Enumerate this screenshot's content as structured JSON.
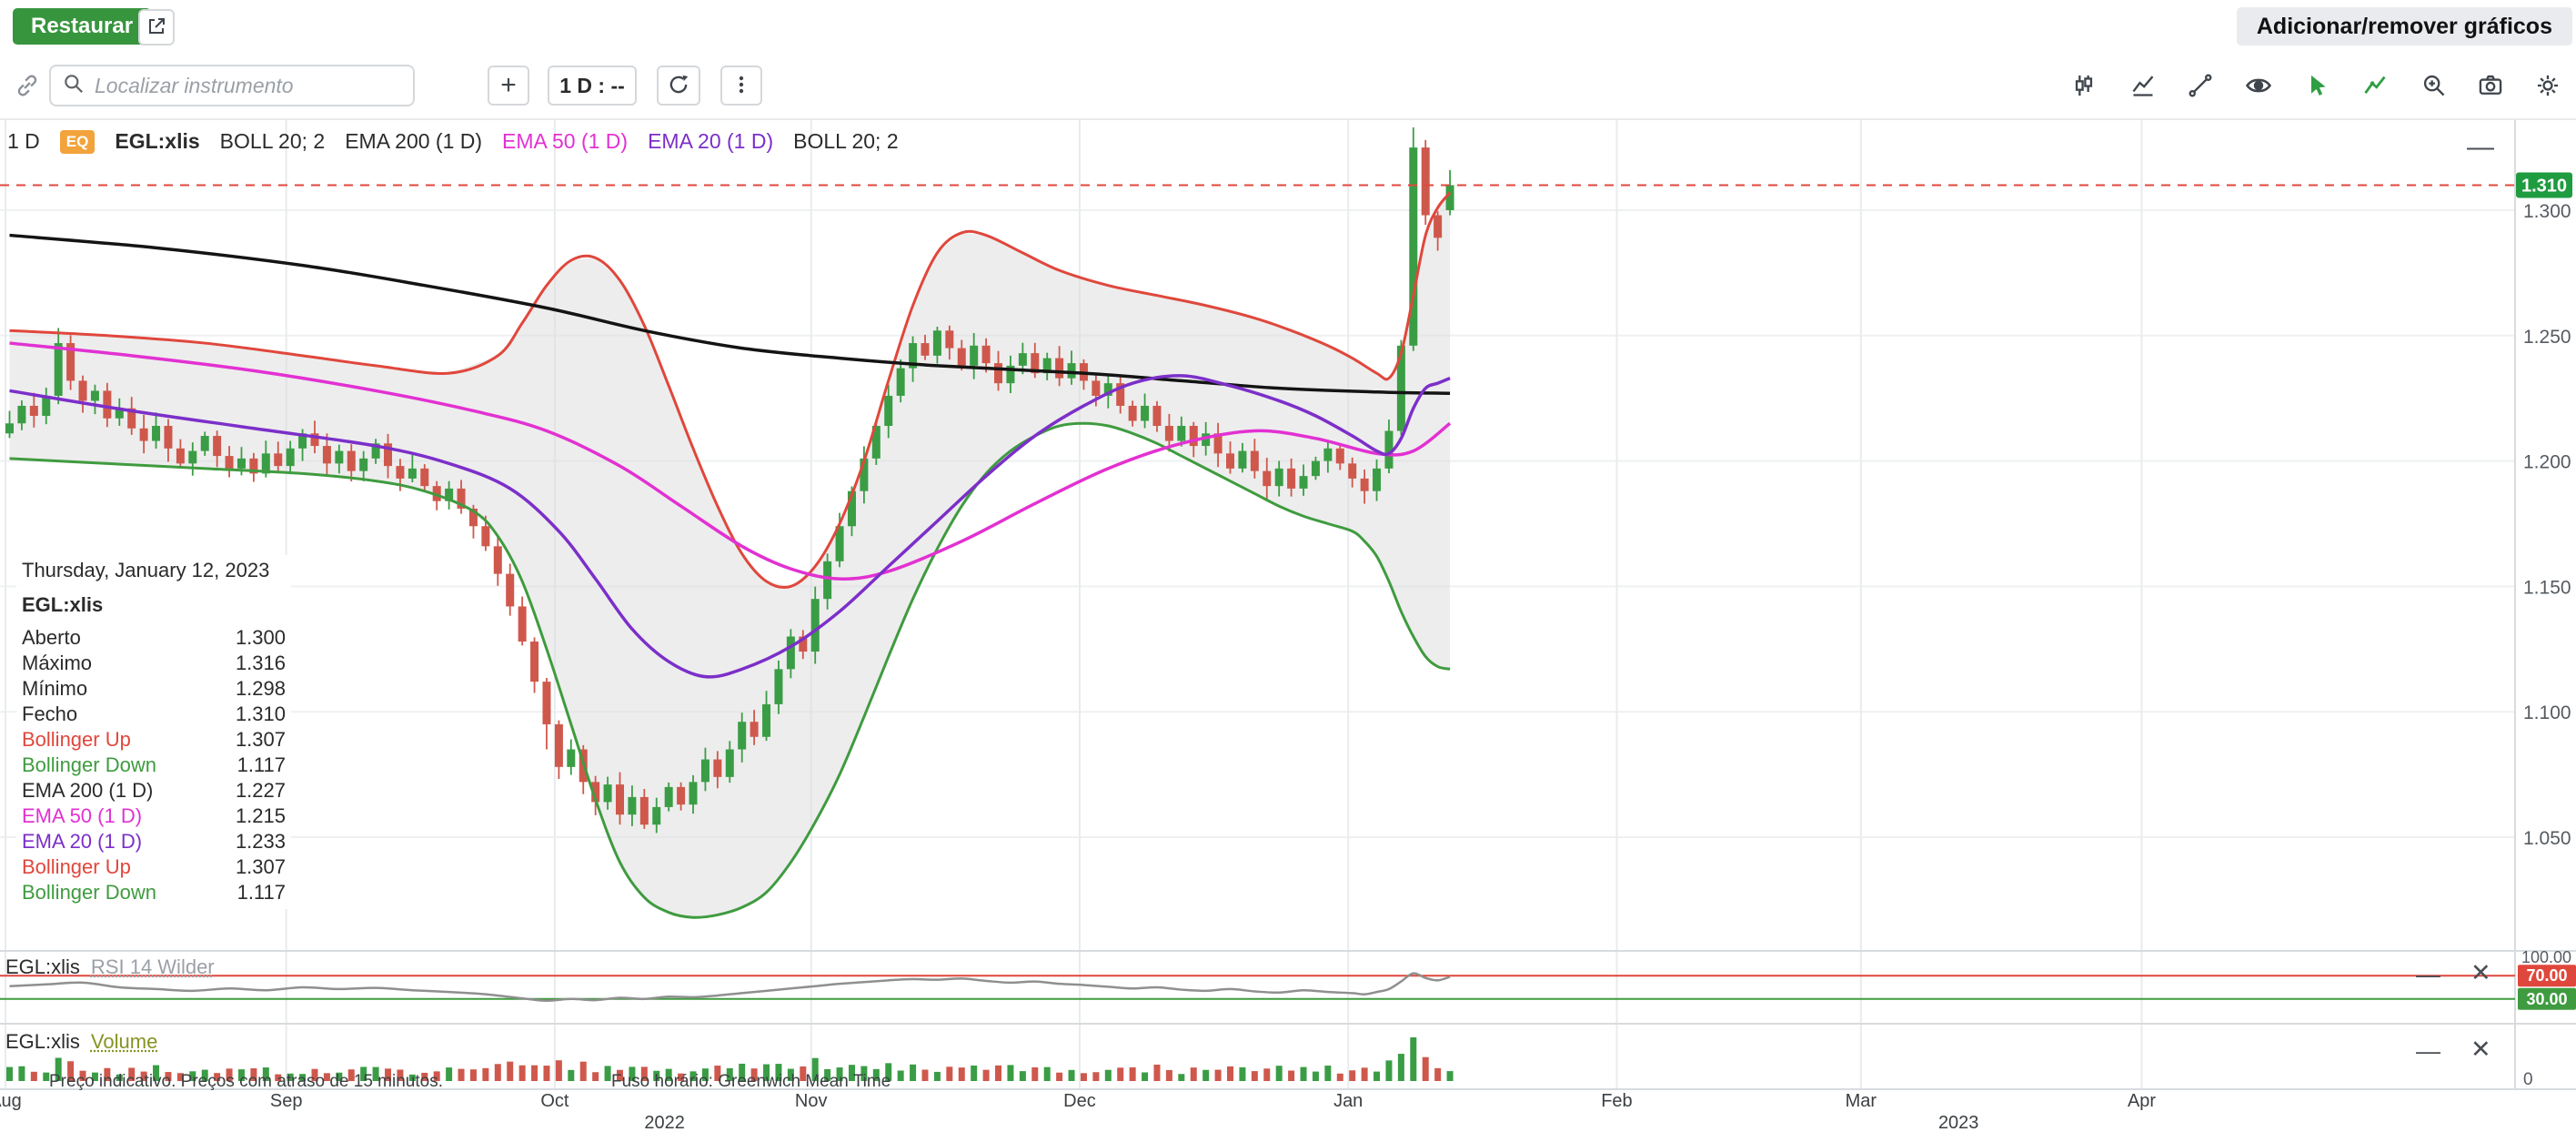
{
  "ui": {
    "plus": "+",
    "minimize": "—",
    "close": "✕"
  },
  "header": {
    "restore_button": "Restaurar",
    "add_remove_button": "Adicionar/remover gráficos"
  },
  "toolbar": {
    "search_placeholder": "Localizar instrumento",
    "interval_button": "1 D : --",
    "left_icons": [
      "link-icon",
      "search-icon",
      "plus-icon",
      "refresh-icon",
      "kebab-menu-icon"
    ],
    "right_icons": [
      "candlestick-tool-icon",
      "area-chart-tool-icon",
      "trendline-tool-icon",
      "eye-icon",
      "cursor-tool-icon",
      "draw-chart-tool-icon",
      "zoom-in-icon",
      "camera-icon",
      "settings-gear-icon"
    ]
  },
  "legend": {
    "interval": "1 D",
    "exchange_badge": "EQ",
    "symbol": "EGL:xlis",
    "studies": [
      {
        "label": "BOLL 20; 2",
        "color": "#2b2b2b"
      },
      {
        "label": "EMA 200 (1 D)",
        "color": "#2b2b2b"
      },
      {
        "label": "EMA 50 (1 D)",
        "color": "#e231d2"
      },
      {
        "label": "EMA 20 (1 D)",
        "color": "#7c2fc9"
      },
      {
        "label": "BOLL 20; 2",
        "color": "#2b2b2b"
      }
    ]
  },
  "tooltip": {
    "date": "Thursday, January 12, 2023",
    "symbol": "EGL:xlis",
    "rows": [
      {
        "label": "Aberto",
        "value": "1.300",
        "color": "#2b2b2b"
      },
      {
        "label": "Máximo",
        "value": "1.316",
        "color": "#2b2b2b"
      },
      {
        "label": "Mínimo",
        "value": "1.298",
        "color": "#2b2b2b"
      },
      {
        "label": "Fecho",
        "value": "1.310",
        "color": "#2b2b2b"
      },
      {
        "label": "Bollinger Up",
        "value": "1.307",
        "color": "#e0473c"
      },
      {
        "label": "Bollinger Down",
        "value": "1.117",
        "color": "#3f9b3f"
      },
      {
        "label": "EMA 200 (1 D)",
        "value": "1.227",
        "color": "#2b2b2b"
      },
      {
        "label": "EMA 50 (1 D)",
        "value": "1.215",
        "color": "#e231d2"
      },
      {
        "label": "EMA 20 (1 D)",
        "value": "1.233",
        "color": "#7c2fc9"
      },
      {
        "label": "Bollinger Up",
        "value": "1.307",
        "color": "#e0473c"
      },
      {
        "label": "Bollinger Down",
        "value": "1.117",
        "color": "#3f9b3f"
      }
    ]
  },
  "panels": {
    "rsi": {
      "symbol": "EGL:xlis",
      "study": "RSI 14 Wilder",
      "scale_top": "100.00",
      "upper_badge": "70.00",
      "lower_badge": "30.00"
    },
    "volume": {
      "symbol": "EGL:xlis",
      "study": "Volume",
      "scale_zero": "0"
    }
  },
  "footer": {
    "disclaimer": "Preço indicativo. Preços com atraso de 15 minutos.",
    "timezone": "Fuso horário: Greenwich Mean Time"
  },
  "chart_data": {
    "type": "candlestick",
    "title": "EGL:xlis 1 D — Bollinger 20;2, EMA 200, EMA 50, EMA 20, RSI 14 Wilder, Volume",
    "price_axis": {
      "ticks": [
        1.3,
        1.25,
        1.2,
        1.15,
        1.1,
        1.05
      ],
      "last_price": 1.31,
      "price_range_visible": [
        1.005,
        1.335
      ]
    },
    "time_axis": {
      "months": [
        {
          "label": "Aug",
          "day": 0
        },
        {
          "label": "Sep",
          "day": 23
        },
        {
          "label": "Oct",
          "day": 45
        },
        {
          "label": "Nov",
          "day": 66
        },
        {
          "label": "Dec",
          "day": 88
        },
        {
          "label": "Jan",
          "day": 110
        },
        {
          "label": "Feb",
          "day": 132
        },
        {
          "label": "Mar",
          "day": 152
        },
        {
          "label": "Apr",
          "day": 175
        }
      ],
      "years": [
        {
          "label": "2022",
          "day": 54
        },
        {
          "label": "2023",
          "day": 160
        }
      ]
    },
    "colors": {
      "up": "#3a9d45",
      "down": "#cf584c",
      "band_fill": "#dcdcdc",
      "boll_up": "#e0473c",
      "boll_down": "#3f9b3f",
      "ema200": "#141414",
      "ema50": "#e231d2",
      "ema20": "#7c2fc9",
      "last_line": "#e0473c",
      "last_chip": "#1f9b40",
      "rsi_line": "#8f8f8f",
      "rsi_upper": "#e0473c",
      "rsi_lower": "#3f9b3f",
      "grid_v": "#e9ebed",
      "grid_h": "#eef0f2",
      "separator": "#d8dbde",
      "axis_text": "#565b61"
    },
    "closes": [
      1.215,
      1.222,
      1.218,
      1.226,
      1.247,
      1.232,
      1.224,
      1.228,
      1.217,
      1.221,
      1.213,
      1.208,
      1.214,
      1.205,
      1.199,
      1.204,
      1.21,
      1.202,
      1.197,
      1.201,
      1.195,
      1.203,
      1.198,
      1.205,
      1.211,
      1.206,
      1.199,
      1.204,
      1.196,
      1.201,
      1.207,
      1.198,
      1.193,
      1.197,
      1.19,
      1.184,
      1.189,
      1.181,
      1.174,
      1.166,
      1.155,
      1.142,
      1.128,
      1.112,
      1.095,
      1.078,
      1.085,
      1.072,
      1.064,
      1.071,
      1.059,
      1.066,
      1.055,
      1.062,
      1.07,
      1.063,
      1.072,
      1.081,
      1.074,
      1.085,
      1.096,
      1.09,
      1.103,
      1.117,
      1.13,
      1.124,
      1.145,
      1.16,
      1.174,
      1.188,
      1.201,
      1.214,
      1.226,
      1.237,
      1.247,
      1.242,
      1.252,
      1.245,
      1.238,
      1.246,
      1.239,
      1.231,
      1.238,
      1.243,
      1.235,
      1.241,
      1.233,
      1.239,
      1.232,
      1.226,
      1.231,
      1.222,
      1.216,
      1.222,
      1.214,
      1.208,
      1.214,
      1.206,
      1.211,
      1.203,
      1.197,
      1.204,
      1.196,
      1.19,
      1.197,
      1.189,
      1.194,
      1.2,
      1.205,
      1.199,
      1.193,
      1.188,
      1.197,
      1.212,
      1.246,
      1.325,
      1.298,
      1.289,
      1.31
    ],
    "candle_overrides": {
      "4": {
        "h": 1.253
      },
      "44": {
        "l": 1.085
      },
      "115": {
        "h": 1.333
      },
      "116": {
        "h": 1.328
      },
      "118": {
        "o": 1.3,
        "h": 1.316,
        "l": 1.298
      }
    },
    "overlays": {
      "boll_up": {
        "color": "#e0473c",
        "points": [
          [
            0,
            1.252
          ],
          [
            8,
            1.25
          ],
          [
            16,
            1.247
          ],
          [
            24,
            1.242
          ],
          [
            30,
            1.238
          ],
          [
            36,
            1.235
          ],
          [
            40,
            1.242
          ],
          [
            42,
            1.255
          ],
          [
            44,
            1.27
          ],
          [
            46,
            1.28
          ],
          [
            48,
            1.281
          ],
          [
            50,
            1.272
          ],
          [
            52,
            1.254
          ],
          [
            54,
            1.23
          ],
          [
            56,
            1.205
          ],
          [
            58,
            1.182
          ],
          [
            60,
            1.163
          ],
          [
            62,
            1.152
          ],
          [
            64,
            1.15
          ],
          [
            66,
            1.158
          ],
          [
            68,
            1.175
          ],
          [
            70,
            1.2
          ],
          [
            72,
            1.232
          ],
          [
            74,
            1.262
          ],
          [
            76,
            1.283
          ],
          [
            78,
            1.291
          ],
          [
            80,
            1.29
          ],
          [
            83,
            1.283
          ],
          [
            86,
            1.276
          ],
          [
            90,
            1.27
          ],
          [
            94,
            1.266
          ],
          [
            98,
            1.262
          ],
          [
            102,
            1.257
          ],
          [
            105,
            1.252
          ],
          [
            108,
            1.246
          ],
          [
            110,
            1.241
          ],
          [
            112,
            1.235
          ],
          [
            113,
            1.233
          ],
          [
            114,
            1.243
          ],
          [
            115,
            1.266
          ],
          [
            116,
            1.29
          ],
          [
            117,
            1.301
          ],
          [
            118,
            1.307
          ]
        ]
      },
      "boll_down": {
        "color": "#3f9b3f",
        "points": [
          [
            0,
            1.201
          ],
          [
            8,
            1.199
          ],
          [
            16,
            1.197
          ],
          [
            24,
            1.195
          ],
          [
            30,
            1.192
          ],
          [
            34,
            1.188
          ],
          [
            38,
            1.18
          ],
          [
            40,
            1.17
          ],
          [
            42,
            1.152
          ],
          [
            44,
            1.125
          ],
          [
            46,
            1.095
          ],
          [
            48,
            1.065
          ],
          [
            50,
            1.04
          ],
          [
            52,
            1.026
          ],
          [
            54,
            1.02
          ],
          [
            56,
            1.018
          ],
          [
            58,
            1.019
          ],
          [
            60,
            1.022
          ],
          [
            62,
            1.028
          ],
          [
            64,
            1.04
          ],
          [
            66,
            1.056
          ],
          [
            68,
            1.075
          ],
          [
            70,
            1.098
          ],
          [
            72,
            1.122
          ],
          [
            74,
            1.145
          ],
          [
            76,
            1.165
          ],
          [
            78,
            1.182
          ],
          [
            80,
            1.195
          ],
          [
            82,
            1.204
          ],
          [
            84,
            1.21
          ],
          [
            86,
            1.214
          ],
          [
            88,
            1.215
          ],
          [
            90,
            1.214
          ],
          [
            92,
            1.211
          ],
          [
            94,
            1.207
          ],
          [
            96,
            1.202
          ],
          [
            98,
            1.197
          ],
          [
            100,
            1.192
          ],
          [
            102,
            1.187
          ],
          [
            104,
            1.182
          ],
          [
            106,
            1.178
          ],
          [
            108,
            1.175
          ],
          [
            110,
            1.172
          ],
          [
            111,
            1.168
          ],
          [
            112,
            1.162
          ],
          [
            113,
            1.152
          ],
          [
            114,
            1.14
          ],
          [
            115,
            1.13
          ],
          [
            116,
            1.122
          ],
          [
            117,
            1.118
          ],
          [
            118,
            1.117
          ]
        ]
      },
      "ema200": {
        "color": "#141414",
        "points": [
          [
            0,
            1.29
          ],
          [
            12,
            1.285
          ],
          [
            24,
            1.278
          ],
          [
            34,
            1.27
          ],
          [
            44,
            1.261
          ],
          [
            52,
            1.252
          ],
          [
            60,
            1.245
          ],
          [
            68,
            1.241
          ],
          [
            76,
            1.238
          ],
          [
            88,
            1.235
          ],
          [
            96,
            1.232
          ],
          [
            104,
            1.229
          ],
          [
            112,
            1.2275
          ],
          [
            118,
            1.227
          ]
        ]
      },
      "ema50": {
        "color": "#e231d2",
        "points": [
          [
            0,
            1.247
          ],
          [
            10,
            1.242
          ],
          [
            20,
            1.236
          ],
          [
            30,
            1.228
          ],
          [
            38,
            1.22
          ],
          [
            44,
            1.212
          ],
          [
            50,
            1.198
          ],
          [
            55,
            1.182
          ],
          [
            60,
            1.166
          ],
          [
            64,
            1.157
          ],
          [
            68,
            1.153
          ],
          [
            72,
            1.156
          ],
          [
            78,
            1.168
          ],
          [
            84,
            1.183
          ],
          [
            90,
            1.197
          ],
          [
            96,
            1.207
          ],
          [
            102,
            1.212
          ],
          [
            107,
            1.209
          ],
          [
            112,
            1.203
          ],
          [
            115,
            1.204
          ],
          [
            118,
            1.215
          ]
        ]
      },
      "ema20": {
        "color": "#7c2fc9",
        "points": [
          [
            0,
            1.228
          ],
          [
            10,
            1.22
          ],
          [
            20,
            1.213
          ],
          [
            30,
            1.206
          ],
          [
            36,
            1.199
          ],
          [
            41,
            1.189
          ],
          [
            45,
            1.172
          ],
          [
            48,
            1.153
          ],
          [
            51,
            1.133
          ],
          [
            54,
            1.12
          ],
          [
            57,
            1.114
          ],
          [
            60,
            1.117
          ],
          [
            64,
            1.126
          ],
          [
            68,
            1.14
          ],
          [
            72,
            1.158
          ],
          [
            76,
            1.176
          ],
          [
            80,
            1.194
          ],
          [
            84,
            1.21
          ],
          [
            88,
            1.222
          ],
          [
            92,
            1.231
          ],
          [
            96,
            1.234
          ],
          [
            100,
            1.23
          ],
          [
            104,
            1.224
          ],
          [
            107,
            1.218
          ],
          [
            110,
            1.21
          ],
          [
            112,
            1.204
          ],
          [
            113,
            1.203
          ],
          [
            114,
            1.209
          ],
          [
            115,
            1.221
          ],
          [
            116,
            1.229
          ],
          [
            117,
            1.231
          ],
          [
            118,
            1.233
          ]
        ]
      }
    },
    "rsi": {
      "levels": [
        70,
        30
      ],
      "points": [
        [
          0,
          52
        ],
        [
          3,
          55
        ],
        [
          6,
          58
        ],
        [
          9,
          50
        ],
        [
          12,
          47
        ],
        [
          15,
          44
        ],
        [
          18,
          48
        ],
        [
          21,
          45
        ],
        [
          24,
          50
        ],
        [
          27,
          47
        ],
        [
          30,
          49
        ],
        [
          33,
          45
        ],
        [
          36,
          42
        ],
        [
          39,
          38
        ],
        [
          42,
          31
        ],
        [
          44,
          27
        ],
        [
          46,
          30
        ],
        [
          48,
          28
        ],
        [
          50,
          32
        ],
        [
          52,
          30
        ],
        [
          54,
          34
        ],
        [
          56,
          33
        ],
        [
          58,
          36
        ],
        [
          60,
          40
        ],
        [
          62,
          44
        ],
        [
          64,
          48
        ],
        [
          66,
          52
        ],
        [
          68,
          56
        ],
        [
          70,
          59
        ],
        [
          72,
          62
        ],
        [
          74,
          64
        ],
        [
          76,
          63
        ],
        [
          78,
          65
        ],
        [
          80,
          61
        ],
        [
          82,
          58
        ],
        [
          84,
          60
        ],
        [
          86,
          56
        ],
        [
          88,
          54
        ],
        [
          90,
          51
        ],
        [
          92,
          48
        ],
        [
          94,
          50
        ],
        [
          96,
          46
        ],
        [
          98,
          44
        ],
        [
          100,
          47
        ],
        [
          102,
          43
        ],
        [
          104,
          41
        ],
        [
          106,
          45
        ],
        [
          108,
          42
        ],
        [
          110,
          40
        ],
        [
          111,
          38
        ],
        [
          112,
          42
        ],
        [
          113,
          47
        ],
        [
          114,
          60
        ],
        [
          115,
          74
        ],
        [
          116,
          66
        ],
        [
          117,
          62
        ],
        [
          118,
          68
        ]
      ]
    }
  }
}
